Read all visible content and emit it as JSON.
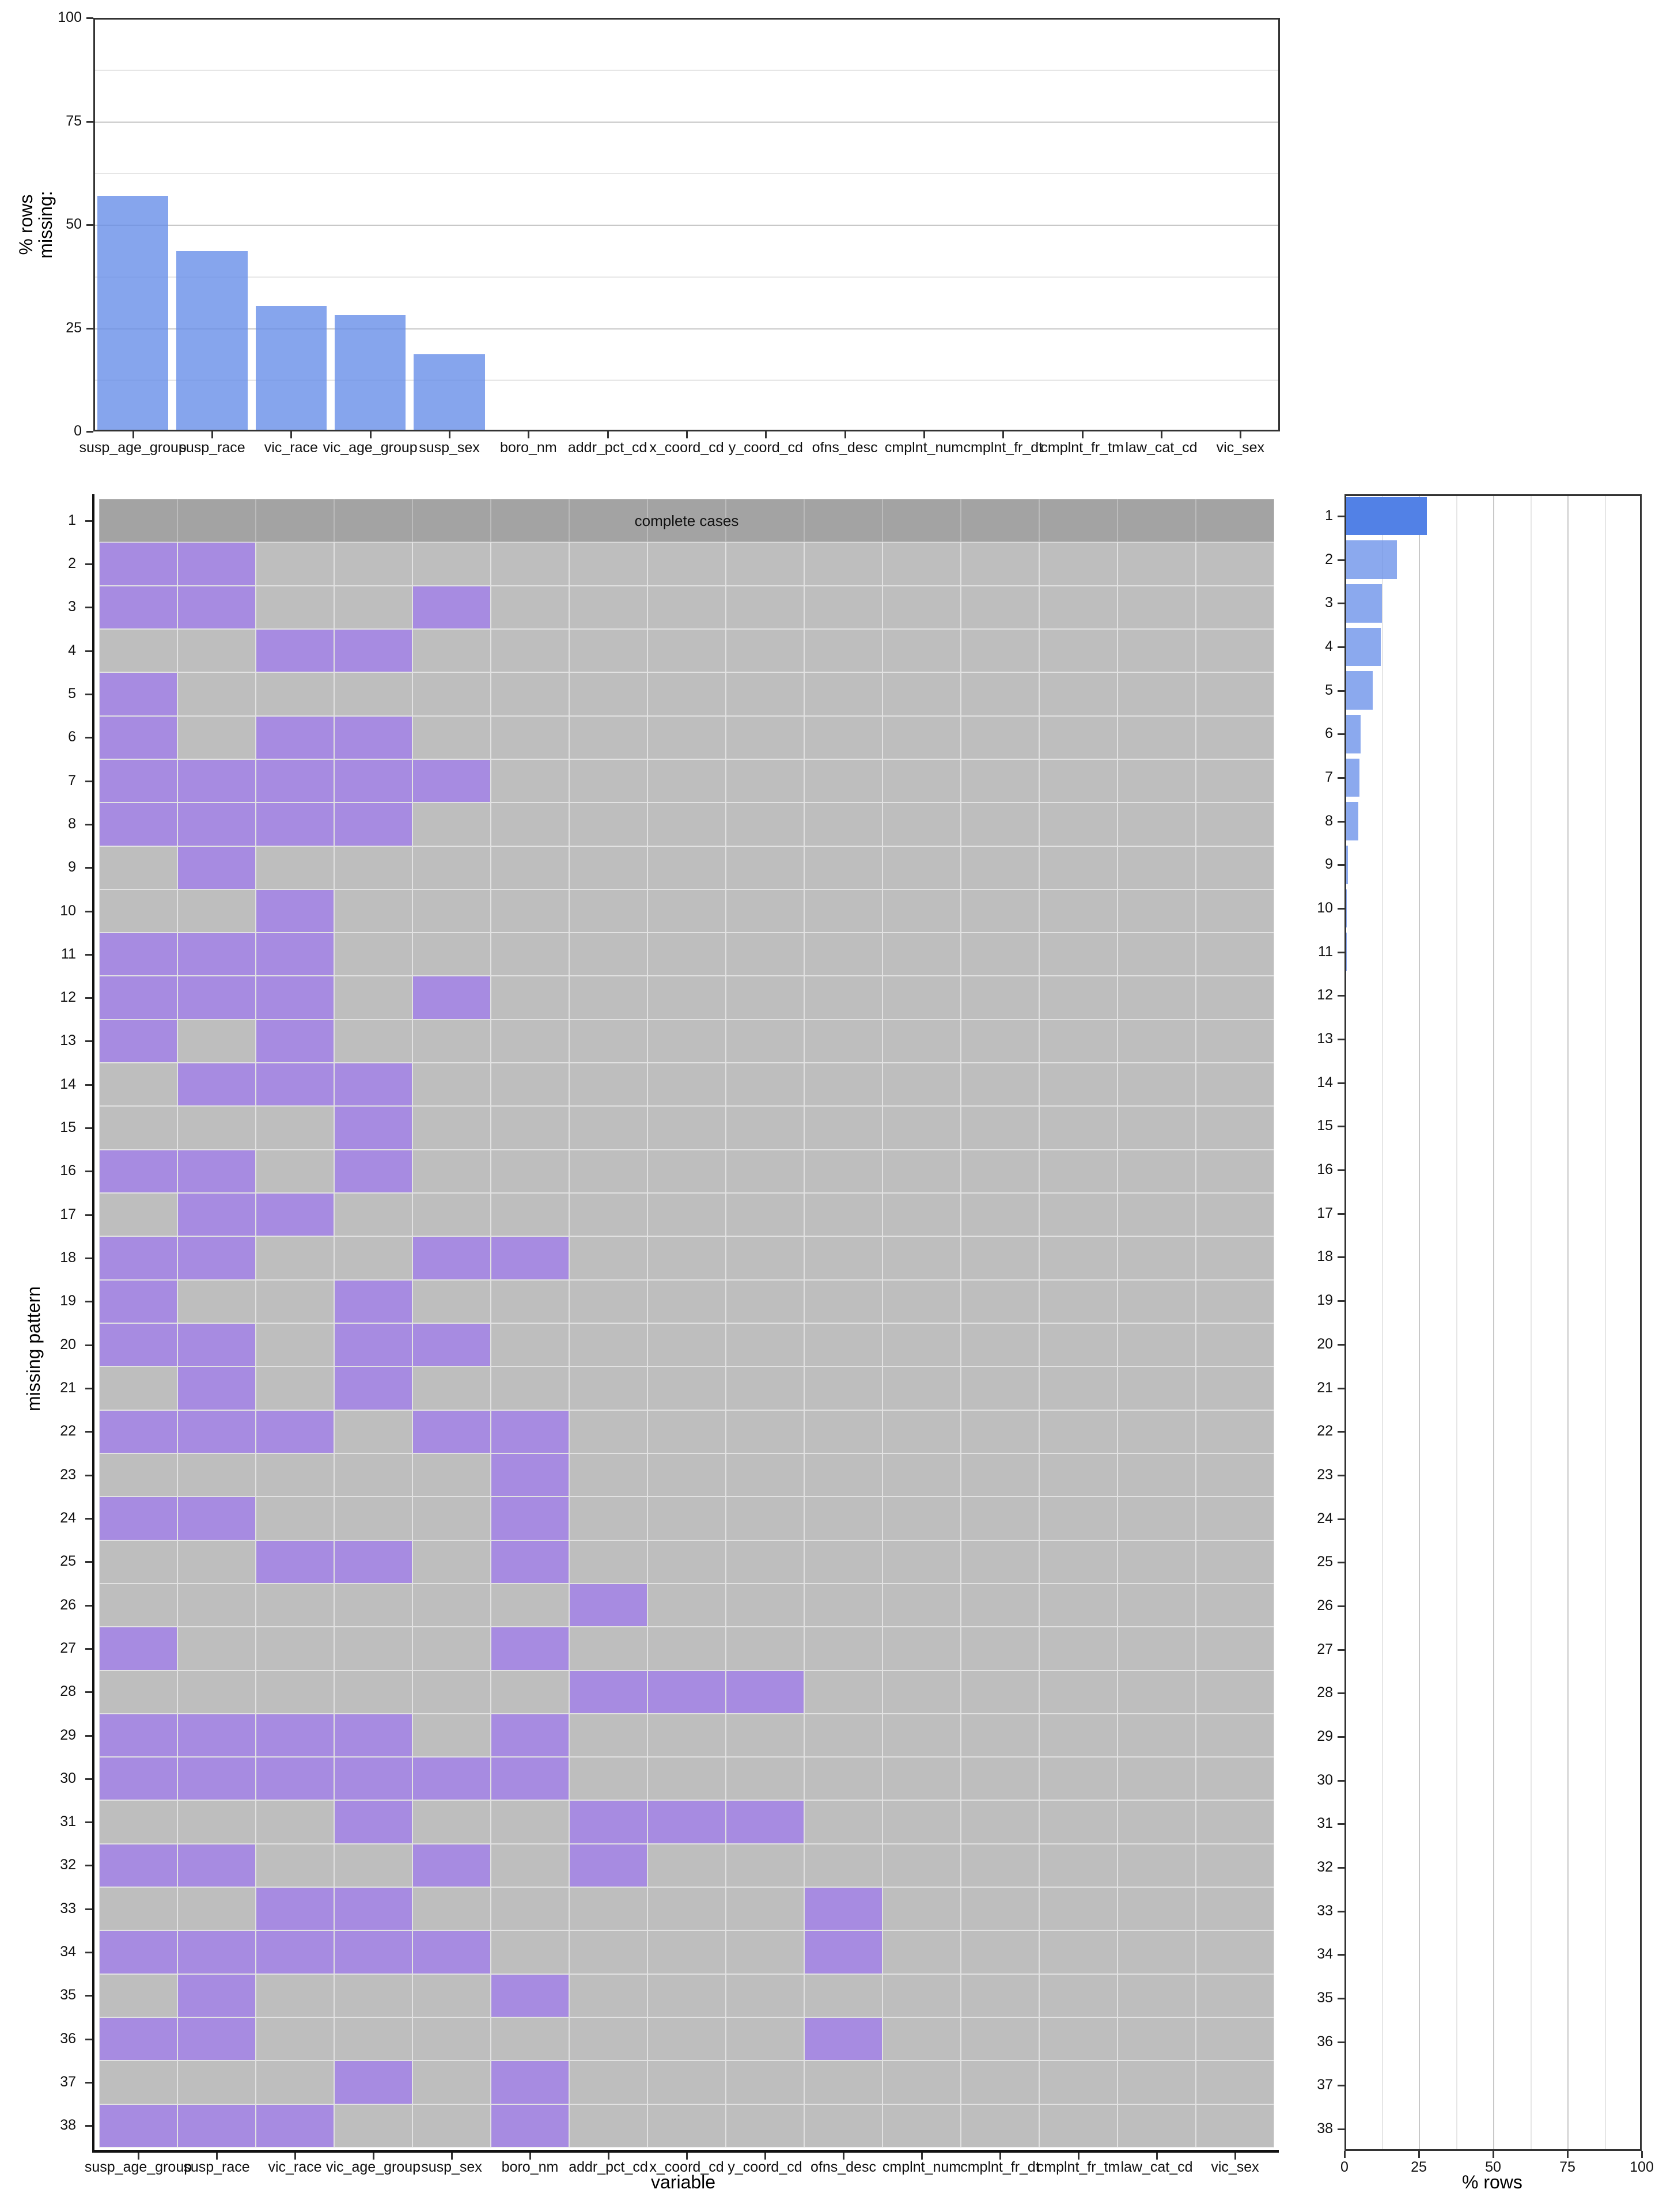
{
  "chart_data": [
    {
      "type": "bar",
      "title": "",
      "ylabel": "% rows missing:",
      "xlabel": "",
      "ylim": [
        0,
        100
      ],
      "yticks": [
        0,
        25,
        50,
        75,
        100
      ],
      "categories": [
        "susp_age_group",
        "susp_race",
        "vic_race",
        "vic_age_group",
        "susp_sex",
        "boro_nm",
        "addr_pct_cd",
        "x_coord_cd",
        "y_coord_cd",
        "ofns_desc",
        "cmplnt_num",
        "cmplnt_fr_dt",
        "cmplnt_fr_tm",
        "law_cat_cd",
        "vic_sex"
      ],
      "values": [
        57.0,
        43.6,
        30.3,
        28.2,
        18.6,
        0,
        0,
        0,
        0,
        0,
        0,
        0,
        0,
        0,
        0
      ],
      "grid": true,
      "bar_color": "#87a6ee"
    },
    {
      "type": "heatmap",
      "title": "",
      "xlabel": "variable",
      "ylabel": "missing pattern",
      "columns": [
        "susp_age_group",
        "susp_race",
        "vic_race",
        "vic_age_group",
        "susp_sex",
        "boro_nm",
        "addr_pct_cd",
        "x_coord_cd",
        "y_coord_cd",
        "ofns_desc",
        "cmplnt_num",
        "cmplnt_fr_dt",
        "cmplnt_fr_tm",
        "law_cat_cd",
        "vic_sex"
      ],
      "rows": [
        "1",
        "2",
        "3",
        "4",
        "5",
        "6",
        "7",
        "8",
        "9",
        "10",
        "11",
        "12",
        "13",
        "14",
        "15",
        "16",
        "17",
        "18",
        "19",
        "20",
        "21",
        "22",
        "23",
        "24",
        "25",
        "26",
        "27",
        "28",
        "29",
        "30",
        "31",
        "32",
        "33",
        "34",
        "35",
        "36",
        "37",
        "38"
      ],
      "annotation": "complete cases",
      "missing_color": "#a78be1",
      "observed_color": "#bebebe",
      "complete_color": "#a3a3a3",
      "patterns": [
        [
          0,
          0,
          0,
          0,
          0,
          0,
          0,
          0,
          0,
          0,
          0,
          0,
          0,
          0,
          0
        ],
        [
          1,
          1,
          0,
          0,
          0,
          0,
          0,
          0,
          0,
          0,
          0,
          0,
          0,
          0,
          0
        ],
        [
          1,
          1,
          0,
          0,
          1,
          0,
          0,
          0,
          0,
          0,
          0,
          0,
          0,
          0,
          0
        ],
        [
          0,
          0,
          1,
          1,
          0,
          0,
          0,
          0,
          0,
          0,
          0,
          0,
          0,
          0,
          0
        ],
        [
          1,
          0,
          0,
          0,
          0,
          0,
          0,
          0,
          0,
          0,
          0,
          0,
          0,
          0,
          0
        ],
        [
          1,
          0,
          1,
          1,
          0,
          0,
          0,
          0,
          0,
          0,
          0,
          0,
          0,
          0,
          0
        ],
        [
          1,
          1,
          1,
          1,
          1,
          0,
          0,
          0,
          0,
          0,
          0,
          0,
          0,
          0,
          0
        ],
        [
          1,
          1,
          1,
          1,
          0,
          0,
          0,
          0,
          0,
          0,
          0,
          0,
          0,
          0,
          0
        ],
        [
          0,
          1,
          0,
          0,
          0,
          0,
          0,
          0,
          0,
          0,
          0,
          0,
          0,
          0,
          0
        ],
        [
          0,
          0,
          1,
          0,
          0,
          0,
          0,
          0,
          0,
          0,
          0,
          0,
          0,
          0,
          0
        ],
        [
          1,
          1,
          1,
          0,
          0,
          0,
          0,
          0,
          0,
          0,
          0,
          0,
          0,
          0,
          0
        ],
        [
          1,
          1,
          1,
          0,
          1,
          0,
          0,
          0,
          0,
          0,
          0,
          0,
          0,
          0,
          0
        ],
        [
          1,
          0,
          1,
          0,
          0,
          0,
          0,
          0,
          0,
          0,
          0,
          0,
          0,
          0,
          0
        ],
        [
          0,
          1,
          1,
          1,
          0,
          0,
          0,
          0,
          0,
          0,
          0,
          0,
          0,
          0,
          0
        ],
        [
          0,
          0,
          0,
          1,
          0,
          0,
          0,
          0,
          0,
          0,
          0,
          0,
          0,
          0,
          0
        ],
        [
          1,
          1,
          0,
          1,
          0,
          0,
          0,
          0,
          0,
          0,
          0,
          0,
          0,
          0,
          0
        ],
        [
          0,
          1,
          1,
          0,
          0,
          0,
          0,
          0,
          0,
          0,
          0,
          0,
          0,
          0,
          0
        ],
        [
          1,
          1,
          0,
          0,
          1,
          1,
          0,
          0,
          0,
          0,
          0,
          0,
          0,
          0,
          0
        ],
        [
          1,
          0,
          0,
          1,
          0,
          0,
          0,
          0,
          0,
          0,
          0,
          0,
          0,
          0,
          0
        ],
        [
          1,
          1,
          0,
          1,
          1,
          0,
          0,
          0,
          0,
          0,
          0,
          0,
          0,
          0,
          0
        ],
        [
          0,
          1,
          0,
          1,
          0,
          0,
          0,
          0,
          0,
          0,
          0,
          0,
          0,
          0,
          0
        ],
        [
          1,
          1,
          1,
          0,
          1,
          1,
          0,
          0,
          0,
          0,
          0,
          0,
          0,
          0,
          0
        ],
        [
          0,
          0,
          0,
          0,
          0,
          1,
          0,
          0,
          0,
          0,
          0,
          0,
          0,
          0,
          0
        ],
        [
          1,
          1,
          0,
          0,
          0,
          1,
          0,
          0,
          0,
          0,
          0,
          0,
          0,
          0,
          0
        ],
        [
          0,
          0,
          1,
          1,
          0,
          1,
          0,
          0,
          0,
          0,
          0,
          0,
          0,
          0,
          0
        ],
        [
          0,
          0,
          0,
          0,
          0,
          0,
          1,
          0,
          0,
          0,
          0,
          0,
          0,
          0,
          0
        ],
        [
          1,
          0,
          0,
          0,
          0,
          1,
          0,
          0,
          0,
          0,
          0,
          0,
          0,
          0,
          0
        ],
        [
          0,
          0,
          0,
          0,
          0,
          0,
          1,
          1,
          1,
          0,
          0,
          0,
          0,
          0,
          0
        ],
        [
          1,
          1,
          1,
          1,
          0,
          1,
          0,
          0,
          0,
          0,
          0,
          0,
          0,
          0,
          0
        ],
        [
          1,
          1,
          1,
          1,
          1,
          1,
          0,
          0,
          0,
          0,
          0,
          0,
          0,
          0,
          0
        ],
        [
          0,
          0,
          0,
          1,
          0,
          0,
          1,
          1,
          1,
          0,
          0,
          0,
          0,
          0,
          0
        ],
        [
          1,
          1,
          0,
          0,
          1,
          0,
          1,
          0,
          0,
          0,
          0,
          0,
          0,
          0,
          0
        ],
        [
          0,
          0,
          1,
          1,
          0,
          0,
          0,
          0,
          0,
          1,
          0,
          0,
          0,
          0,
          0
        ],
        [
          1,
          1,
          1,
          1,
          1,
          0,
          0,
          0,
          0,
          1,
          0,
          0,
          0,
          0,
          0
        ],
        [
          0,
          1,
          0,
          0,
          0,
          1,
          0,
          0,
          0,
          0,
          0,
          0,
          0,
          0,
          0
        ],
        [
          1,
          1,
          0,
          0,
          0,
          0,
          0,
          0,
          0,
          1,
          0,
          0,
          0,
          0,
          0
        ],
        [
          0,
          0,
          0,
          1,
          0,
          1,
          0,
          0,
          0,
          0,
          0,
          0,
          0,
          0,
          0
        ],
        [
          1,
          1,
          1,
          0,
          0,
          1,
          0,
          0,
          0,
          0,
          0,
          0,
          0,
          0,
          0
        ]
      ]
    },
    {
      "type": "bar",
      "orientation": "horizontal",
      "title": "",
      "xlabel": "% rows",
      "ylabel": "",
      "xlim": [
        0,
        100
      ],
      "xticks": [
        0,
        25,
        50,
        75,
        100
      ],
      "categories": [
        "1",
        "2",
        "3",
        "4",
        "5",
        "6",
        "7",
        "8",
        "9",
        "10",
        "11",
        "12",
        "13",
        "14",
        "15",
        "16",
        "17",
        "18",
        "19",
        "20",
        "21",
        "22",
        "23",
        "24",
        "25",
        "26",
        "27",
        "28",
        "29",
        "30",
        "31",
        "32",
        "33",
        "34",
        "35",
        "36",
        "37",
        "38"
      ],
      "values": [
        27.8,
        17.6,
        12.5,
        12.2,
        9.5,
        5.4,
        5.0,
        4.6,
        1.2,
        0.7,
        0.7,
        0.5,
        0.1,
        0.05,
        0.05,
        0.05,
        0.05,
        0.05,
        0.03,
        0.03,
        0.03,
        0.03,
        0.02,
        0.02,
        0.02,
        0.02,
        0.02,
        0.01,
        0.01,
        0.01,
        0.01,
        0.01,
        0.01,
        0.01,
        0.01,
        0.01,
        0.01,
        0.01
      ],
      "highlight_color": "#5281e6",
      "bar_color": "#87a6ee",
      "grid": true
    }
  ],
  "top_panel": {
    "ylabel_line1": "% rows",
    "ylabel_line2": "missing:",
    "ytick_labels": [
      "0",
      "25",
      "50",
      "75",
      "100"
    ]
  },
  "matrix_panel": {
    "xlabel": "variable",
    "ylabel": "missing pattern",
    "annotation": "complete cases"
  },
  "right_panel": {
    "xlabel": "% rows",
    "xtick_labels": [
      "0",
      "25",
      "50",
      "75",
      "100"
    ]
  }
}
